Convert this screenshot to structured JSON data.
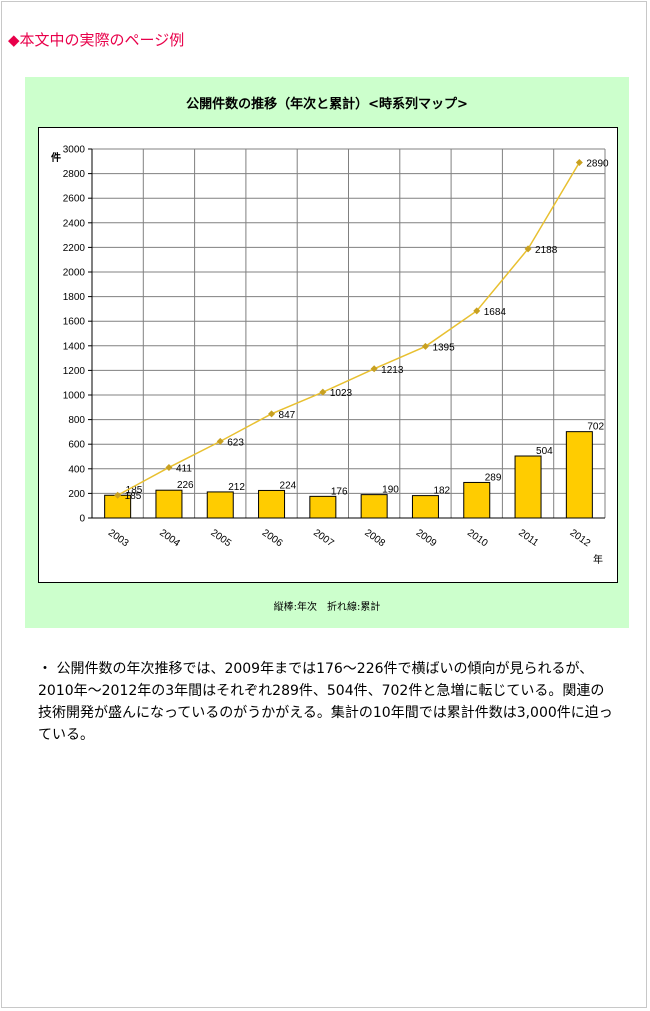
{
  "heading": "◆本文中の実際のページ例",
  "chart_data": {
    "type": "bar+line",
    "title": "公開件数の推移（年次と累計）<時系列マップ>",
    "ylabel": "件",
    "xlabel": "年",
    "categories": [
      "2003",
      "2004",
      "2005",
      "2006",
      "2007",
      "2008",
      "2009",
      "2010",
      "2011",
      "2012"
    ],
    "series": [
      {
        "kind": "bar",
        "values": [
          185,
          226,
          212,
          224,
          176,
          190,
          182,
          289,
          504,
          702
        ],
        "color": "#ffcc00"
      },
      {
        "kind": "line",
        "values": [
          185,
          411,
          623,
          847,
          1023,
          1213,
          1395,
          1684,
          2188,
          2890
        ],
        "color": "#e8c030"
      }
    ],
    "ylim": [
      0,
      3000
    ],
    "yticks": [
      0,
      200,
      400,
      600,
      800,
      1000,
      1200,
      1400,
      1600,
      1800,
      2000,
      2200,
      2400,
      2600,
      2800,
      3000
    ],
    "grid": true,
    "legend_caption": "縦棒:年次　折れ線:累計"
  },
  "body_text": "・ 公開件数の年次推移では、2009年までは176～226件で横ばいの傾向が見られるが、2010年～2012年の3年間はそれぞれ289件、504件、702件と急増に転じている。関連の技術開発が盛んになっているのがうかがえる。集計の10年間では累計件数は3,000件に迫っている。"
}
